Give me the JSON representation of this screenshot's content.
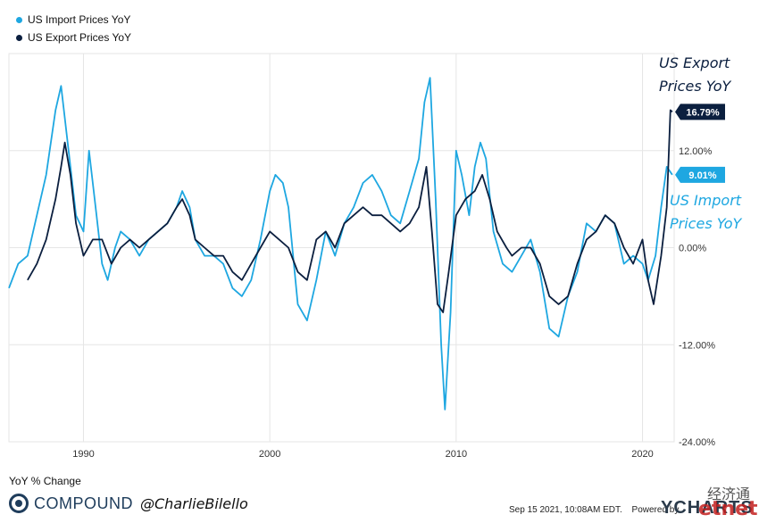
{
  "chart_data": {
    "type": "line",
    "title": "",
    "ylabel": "YoY % Change",
    "xlim": [
      1986.0,
      2021.7
    ],
    "ylim": [
      -24,
      24
    ],
    "x_ticks": [
      {
        "value": 1990,
        "label": "1990"
      },
      {
        "value": 2000,
        "label": "2000"
      },
      {
        "value": 2010,
        "label": "2010"
      },
      {
        "value": 2020,
        "label": "2020"
      }
    ],
    "y_ticks": [
      {
        "value": 12,
        "label": "12.00%"
      },
      {
        "value": 0,
        "label": "0.00%"
      },
      {
        "value": -12,
        "label": "-12.00%"
      },
      {
        "value": -24,
        "label": "-24.00%"
      }
    ],
    "series": [
      {
        "name": "US Import Prices YoY",
        "color": "#1ea7e1",
        "end_label": "9.01%",
        "x": [
          1986.0,
          1986.5,
          1987.0,
          1987.5,
          1988.0,
          1988.5,
          1988.8,
          1989.0,
          1989.3,
          1989.6,
          1990.0,
          1990.3,
          1990.7,
          1991.0,
          1991.3,
          1991.7,
          1992.0,
          1992.5,
          1993.0,
          1993.5,
          1994.0,
          1994.5,
          1995.0,
          1995.3,
          1995.7,
          1996.0,
          1996.5,
          1997.0,
          1997.5,
          1998.0,
          1998.5,
          1999.0,
          1999.5,
          2000.0,
          2000.3,
          2000.7,
          2001.0,
          2001.5,
          2002.0,
          2002.5,
          2003.0,
          2003.5,
          2004.0,
          2004.5,
          2005.0,
          2005.5,
          2006.0,
          2006.5,
          2007.0,
          2007.5,
          2008.0,
          2008.3,
          2008.6,
          2008.9,
          2009.2,
          2009.4,
          2009.7,
          2010.0,
          2010.3,
          2010.7,
          2011.0,
          2011.3,
          2011.6,
          2012.0,
          2012.5,
          2013.0,
          2013.5,
          2014.0,
          2014.5,
          2015.0,
          2015.5,
          2016.0,
          2016.5,
          2017.0,
          2017.5,
          2018.0,
          2018.5,
          2019.0,
          2019.5,
          2020.0,
          2020.3,
          2020.7,
          2021.0,
          2021.3,
          2021.6
        ],
        "y": [
          -5,
          -2,
          -1,
          4,
          9,
          17,
          20,
          16,
          10,
          4,
          2,
          12,
          4,
          -2,
          -4,
          0,
          2,
          1,
          -1,
          1,
          2,
          3,
          5,
          7,
          5,
          1,
          -1,
          -1,
          -2,
          -5,
          -6,
          -4,
          1,
          7,
          9,
          8,
          5,
          -7,
          -9,
          -4,
          2,
          -1,
          3,
          5,
          8,
          9,
          7,
          4,
          3,
          7,
          11,
          18,
          21,
          6,
          -12,
          -20,
          -8,
          12,
          9,
          4,
          10,
          13,
          11,
          2,
          -2,
          -3,
          -1,
          1,
          -3,
          -10,
          -11,
          -6,
          -3,
          3,
          2,
          4,
          3,
          -2,
          -1,
          -2,
          -4,
          -1,
          5,
          10,
          9.01
        ]
      },
      {
        "name": "US Export Prices YoY",
        "color": "#0b1f3f",
        "end_label": "16.79%",
        "x": [
          1987.0,
          1987.5,
          1988.0,
          1988.5,
          1988.8,
          1989.0,
          1989.3,
          1989.6,
          1990.0,
          1990.5,
          1991.0,
          1991.5,
          1992.0,
          1992.5,
          1993.0,
          1993.5,
          1994.0,
          1994.5,
          1995.0,
          1995.3,
          1995.7,
          1996.0,
          1996.5,
          1997.0,
          1997.5,
          1998.0,
          1998.5,
          1999.0,
          1999.5,
          2000.0,
          2000.5,
          2001.0,
          2001.5,
          2002.0,
          2002.5,
          2003.0,
          2003.5,
          2004.0,
          2004.5,
          2005.0,
          2005.5,
          2006.0,
          2006.5,
          2007.0,
          2007.5,
          2008.0,
          2008.4,
          2008.7,
          2009.0,
          2009.3,
          2009.6,
          2010.0,
          2010.5,
          2011.0,
          2011.4,
          2011.8,
          2012.2,
          2012.7,
          2013.0,
          2013.5,
          2014.0,
          2014.5,
          2015.0,
          2015.5,
          2016.0,
          2016.5,
          2017.0,
          2017.5,
          2018.0,
          2018.5,
          2019.0,
          2019.5,
          2020.0,
          2020.3,
          2020.6,
          2021.0,
          2021.3,
          2021.5,
          2021.6
        ],
        "y": [
          -4,
          -2,
          1,
          6,
          10,
          13,
          9,
          3,
          -1,
          1,
          1,
          -2,
          0,
          1,
          0,
          1,
          2,
          3,
          5,
          6,
          4,
          1,
          0,
          -1,
          -1,
          -3,
          -4,
          -2,
          0,
          2,
          1,
          0,
          -3,
          -4,
          1,
          2,
          0,
          3,
          4,
          5,
          4,
          4,
          3,
          2,
          3,
          5,
          10,
          2,
          -7,
          -8,
          -3,
          4,
          6,
          7,
          9,
          6,
          2,
          0,
          -1,
          0,
          0,
          -2,
          -6,
          -7,
          -6,
          -2,
          1,
          2,
          4,
          3,
          0,
          -2,
          1,
          -4,
          -7,
          -1,
          5,
          17,
          16.79
        ]
      }
    ],
    "annotations": [
      {
        "lines": [
          "US Export",
          "Prices YoY"
        ],
        "color": "#0b1f3f"
      },
      {
        "lines": [
          "US Import",
          "Prices YoY"
        ],
        "color": "#1ea7e1"
      }
    ]
  },
  "legend": [
    {
      "label": "US Import Prices YoY",
      "color": "#1ea7e1"
    },
    {
      "label": "US Export Prices YoY",
      "color": "#0b1f3f"
    }
  ],
  "footer": {
    "ylabel": "YoY % Change",
    "brand": "COMPOUND",
    "handle": "@CharlieBilello",
    "timestamp": "Sep 15 2021, 10:08AM EDT.",
    "powered": "Powered by",
    "ycharts": "YCHARTS"
  },
  "watermark": {
    "text": "经济通",
    "logo": "etnet"
  }
}
